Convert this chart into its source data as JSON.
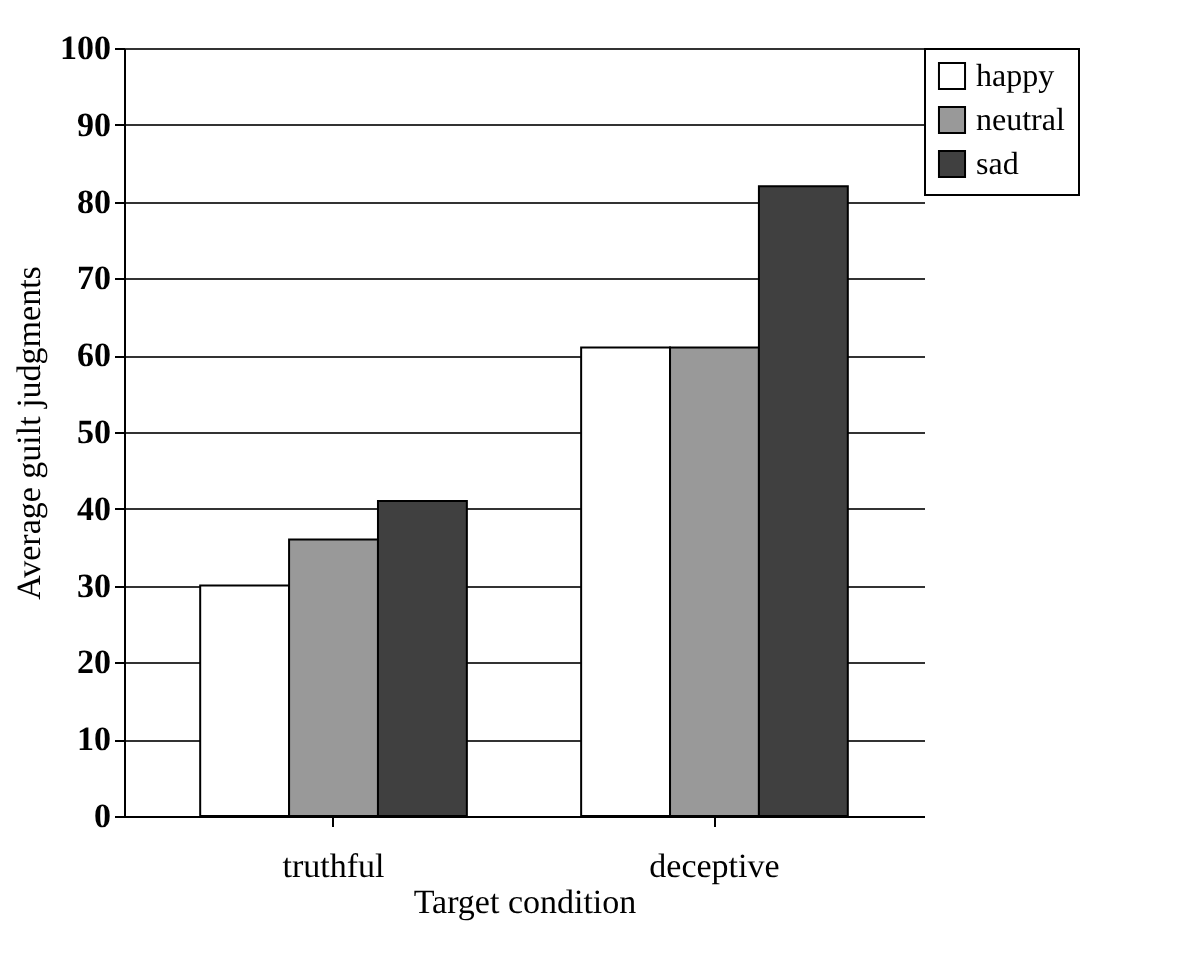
{
  "chart_data": {
    "type": "bar",
    "xlabel": "Target condition",
    "ylabel": "Average  guilt judgments",
    "categories": [
      "truthful",
      "deceptive"
    ],
    "series": [
      {
        "name": "happy",
        "color": "#ffffff",
        "values": [
          30,
          61
        ]
      },
      {
        "name": "neutral",
        "color": "#999999",
        "values": [
          36,
          61
        ]
      },
      {
        "name": "sad",
        "color": "#404040",
        "values": [
          41,
          82
        ]
      }
    ],
    "ylim": [
      0,
      100
    ],
    "yticks": [
      0,
      10,
      20,
      30,
      40,
      50,
      60,
      70,
      80,
      90,
      100
    ],
    "grid": "y",
    "legend": "right"
  }
}
